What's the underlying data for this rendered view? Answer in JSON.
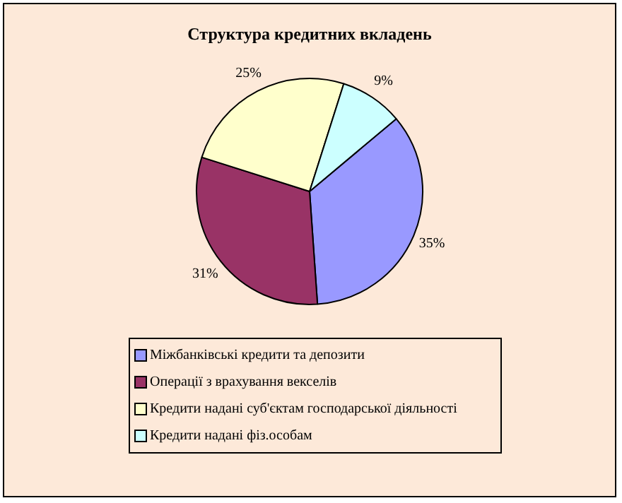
{
  "chart_data": {
    "type": "pie",
    "title": "Структура кредитних вкладень",
    "categories": [
      "Міжбанківські кредити та депозити",
      "Операції з врахування векселів",
      "Кредити надані суб'єктам господарської діяльності",
      "Кредити надані фіз.особам"
    ],
    "values": [
      35,
      31,
      25,
      9
    ],
    "value_labels": [
      "35%",
      "31%",
      "25%",
      "9%"
    ],
    "colors": [
      "#9999ff",
      "#993366",
      "#ffffcc",
      "#ccffff"
    ],
    "legend": "bottom"
  }
}
